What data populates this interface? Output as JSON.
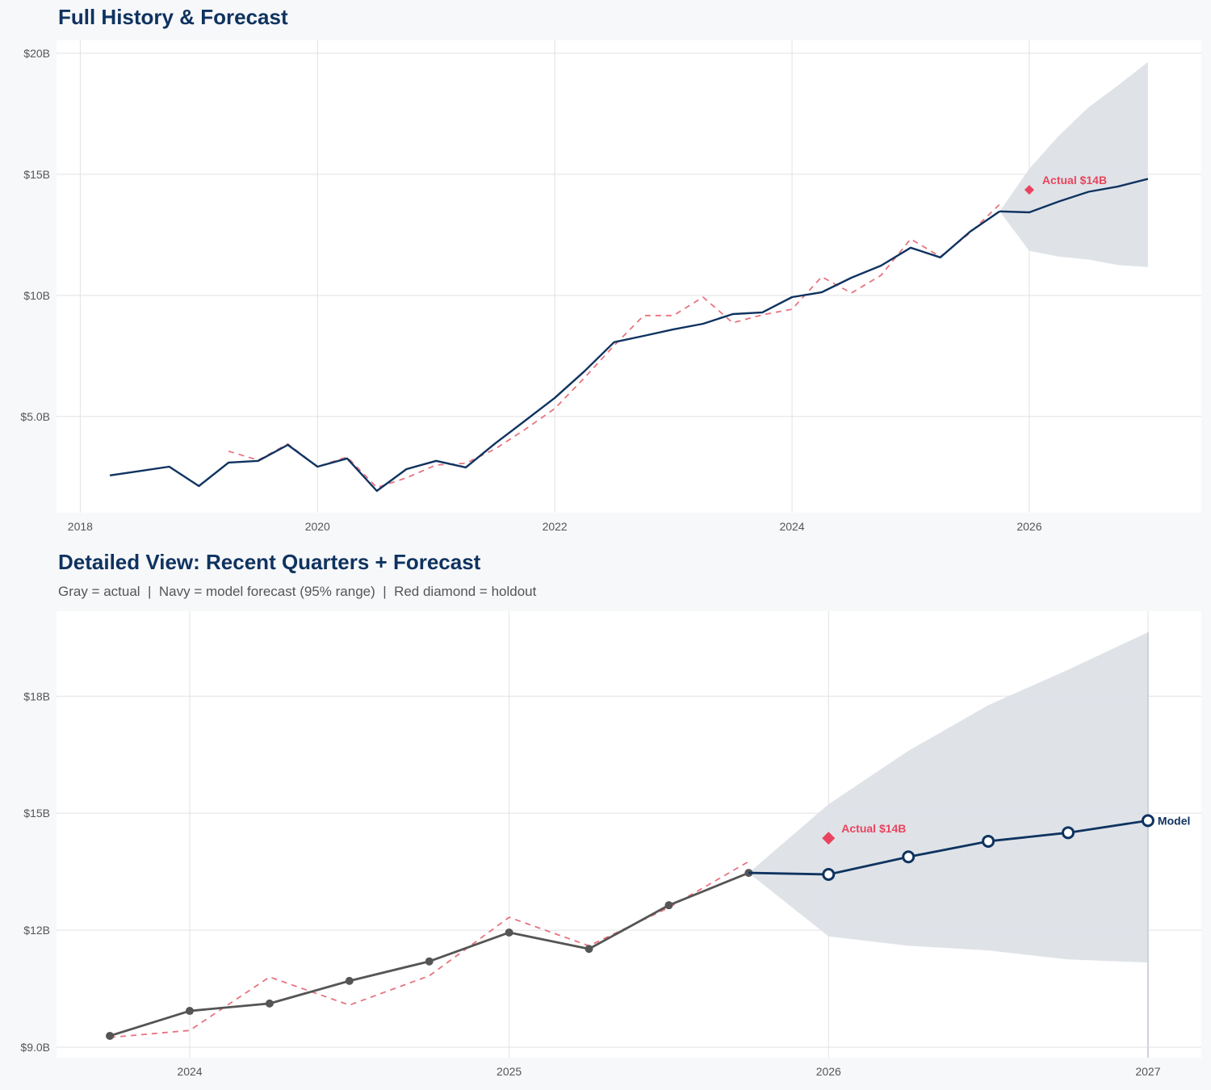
{
  "chart_data": [
    {
      "type": "line",
      "title": "Full History & Forecast",
      "xlim": [
        2017.8,
        2027.45
      ],
      "ylim": [
        1.03,
        20.53
      ],
      "x_ticks": [
        2018,
        2020,
        2022,
        2024,
        2026
      ],
      "x_tick_labels": [
        "2018",
        "2020",
        "2022",
        "2024",
        "2026"
      ],
      "y_ticks": [
        5,
        10,
        15,
        20
      ],
      "y_tick_labels": [
        "$5.0B",
        "$10B",
        "$15B",
        "$20B"
      ],
      "grid": true,
      "series": [
        {
          "role": "actual",
          "color": "#0f3360",
          "style": "solid",
          "x": [
            2018.25,
            2018.5,
            2018.75,
            2019.0,
            2019.25,
            2019.5,
            2019.75,
            2020.0,
            2020.25,
            2020.5,
            2020.75,
            2021.0,
            2021.25,
            2021.5,
            2021.75,
            2022.0,
            2022.25,
            2022.5,
            2022.75,
            2023.0,
            2023.25,
            2023.5,
            2023.75,
            2024.0,
            2024.25,
            2024.5,
            2024.75,
            2025.0,
            2025.25,
            2025.5,
            2025.75
          ],
          "y": [
            2.57,
            2.75,
            2.93,
            2.13,
            3.1,
            3.17,
            3.83,
            2.93,
            3.27,
            1.93,
            2.83,
            3.17,
            2.9,
            3.9,
            4.83,
            5.77,
            6.87,
            8.07,
            8.33,
            8.6,
            8.83,
            9.23,
            9.3,
            9.93,
            10.13,
            10.73,
            11.23,
            11.97,
            11.57,
            12.63,
            13.47
          ]
        },
        {
          "role": "forecast",
          "color": "#0f3360",
          "style": "solid",
          "x": [
            2025.75,
            2026.0,
            2026.25,
            2026.5,
            2026.75,
            2027.0
          ],
          "y": [
            13.47,
            13.43,
            13.88,
            14.28,
            14.5,
            14.81
          ]
        },
        {
          "role": "fitted",
          "color": "#e8737f",
          "style": "dashed",
          "x": [
            2019.25,
            2019.5,
            2019.75,
            2020.0,
            2020.25,
            2020.5,
            2020.75,
            2021.0,
            2021.25,
            2021.5,
            2021.75,
            2022.0,
            2022.25,
            2022.5,
            2022.75,
            2023.0,
            2023.25,
            2023.5,
            2023.75,
            2024.0,
            2024.25,
            2024.5,
            2024.75,
            2025.0,
            2025.25,
            2025.5,
            2025.75
          ],
          "y": [
            3.57,
            3.2,
            3.87,
            2.93,
            3.33,
            2.07,
            2.47,
            3.0,
            3.07,
            3.67,
            4.47,
            5.33,
            6.6,
            7.93,
            9.17,
            9.17,
            9.93,
            8.87,
            9.2,
            9.43,
            10.77,
            10.1,
            10.83,
            12.33,
            11.6,
            12.58,
            13.76
          ]
        }
      ],
      "band": {
        "color": "#dde1e7",
        "x": [
          2025.75,
          2026.0,
          2026.25,
          2026.5,
          2026.75,
          2027.0
        ],
        "upper": [
          13.47,
          15.23,
          16.6,
          17.77,
          18.68,
          19.64
        ],
        "lower": [
          13.47,
          11.84,
          11.6,
          11.48,
          11.25,
          11.17
        ]
      },
      "holdout": {
        "x": 2026.0,
        "y": 14.36,
        "color": "#e8445f",
        "label": "Actual $14B"
      }
    },
    {
      "type": "line",
      "title": "Detailed View: Recent Quarters + Forecast",
      "subtitle": "Gray = actual  |  Navy = model forecast (95% range)  |  Red diamond = holdout",
      "xlim": [
        2023.583,
        2027.167
      ],
      "ylim": [
        8.73,
        20.18
      ],
      "x_ticks": [
        2024,
        2025,
        2026,
        2027
      ],
      "x_tick_labels": [
        "2024",
        "2025",
        "2026",
        "2027"
      ],
      "y_ticks": [
        9,
        12,
        15,
        18
      ],
      "y_tick_labels": [
        "$9.0B",
        "$12B",
        "$15B",
        "$18B"
      ],
      "grid": true,
      "series": [
        {
          "role": "actual",
          "color": "#555555",
          "style": "solid",
          "markers": "filled",
          "x": [
            2023.75,
            2024.0,
            2024.25,
            2024.5,
            2024.75,
            2025.0,
            2025.25,
            2025.5,
            2025.75
          ],
          "y": [
            9.29,
            9.93,
            10.12,
            10.7,
            11.2,
            11.94,
            11.52,
            12.64,
            13.47
          ]
        },
        {
          "role": "forecast",
          "color": "#0f3360",
          "style": "solid",
          "markers": "open",
          "end_label": "Model",
          "x": [
            2025.75,
            2026.0,
            2026.25,
            2026.5,
            2026.75,
            2027.0
          ],
          "y": [
            13.47,
            13.43,
            13.88,
            14.28,
            14.5,
            14.81
          ]
        },
        {
          "role": "fitted",
          "color": "#e8737f",
          "style": "dashed",
          "x": [
            2023.75,
            2024.0,
            2024.25,
            2024.5,
            2024.75,
            2025.0,
            2025.25,
            2025.5,
            2025.75
          ],
          "y": [
            9.25,
            9.43,
            10.8,
            10.08,
            10.83,
            12.33,
            11.6,
            12.58,
            13.76
          ]
        }
      ],
      "band": {
        "color": "#dde1e7",
        "x": [
          2025.75,
          2026.0,
          2026.25,
          2026.5,
          2026.75,
          2027.0
        ],
        "upper": [
          13.47,
          15.23,
          16.6,
          17.77,
          18.68,
          19.64
        ],
        "lower": [
          13.47,
          11.84,
          11.6,
          11.48,
          11.25,
          11.17
        ]
      },
      "holdout": {
        "x": 2026.0,
        "y": 14.36,
        "color": "#e8445f",
        "label": "Actual $14B"
      }
    }
  ]
}
